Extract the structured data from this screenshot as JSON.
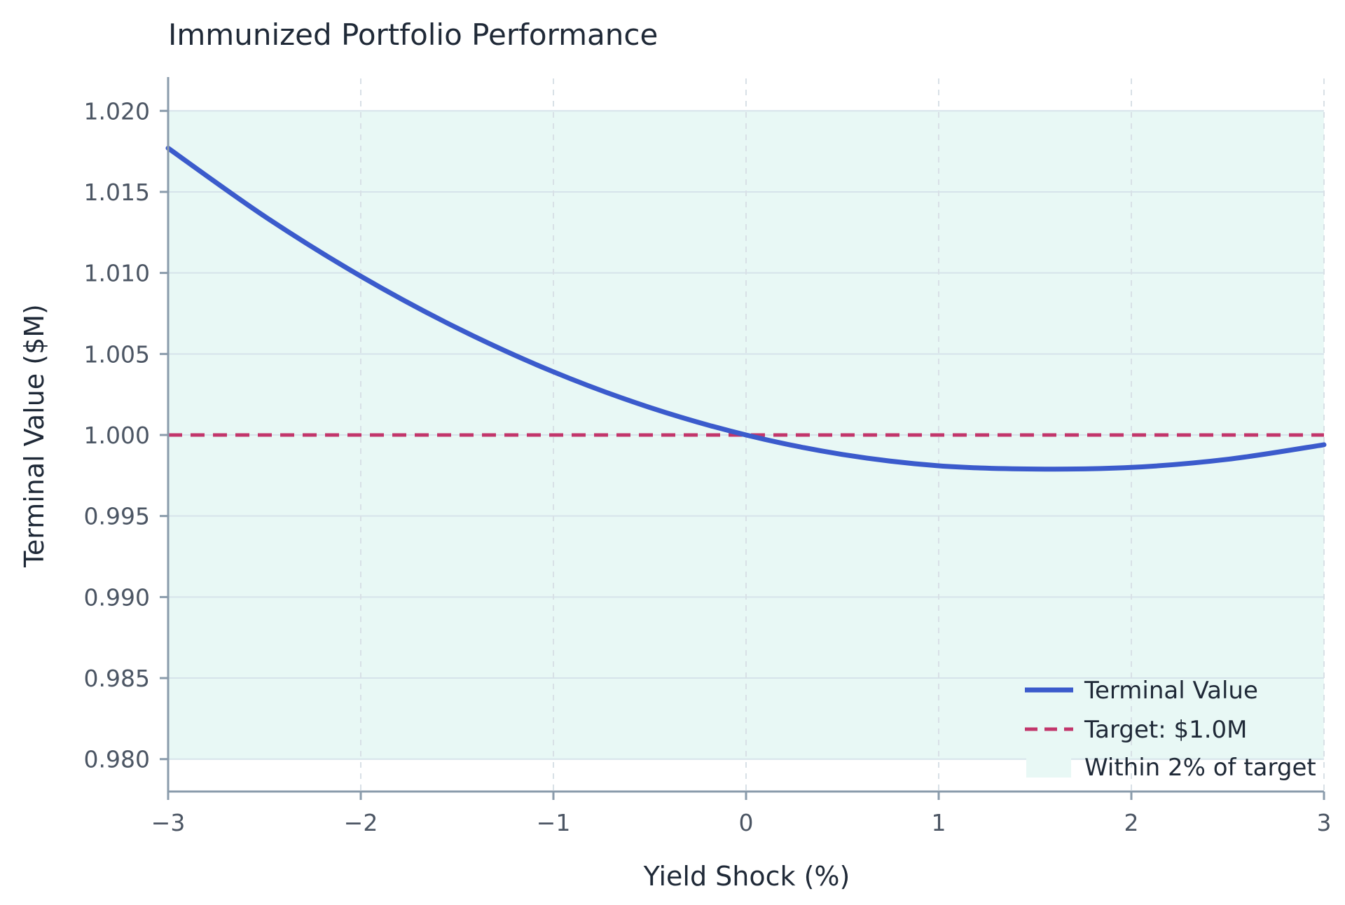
{
  "chart_data": {
    "type": "line",
    "title": "Immunized Portfolio Performance",
    "xlabel": "Yield Shock (%)",
    "ylabel": "Terminal Value ($M)",
    "xlim": [
      -3,
      3
    ],
    "ylim": [
      0.978,
      1.022
    ],
    "x_ticks": [
      -3,
      -2,
      -1,
      0,
      1,
      2,
      3
    ],
    "x_tick_labels": [
      "−3",
      "−2",
      "−1",
      "0",
      "1",
      "2",
      "3"
    ],
    "y_ticks": [
      0.98,
      0.985,
      0.99,
      0.995,
      1.0,
      1.005,
      1.01,
      1.015,
      1.02
    ],
    "y_tick_labels": [
      "0.980",
      "0.985",
      "0.990",
      "0.995",
      "1.000",
      "1.005",
      "1.010",
      "1.015",
      "1.020"
    ],
    "grid": true,
    "legend_position": "bottom-right",
    "series": [
      {
        "name": "Terminal Value",
        "color": "#3b5bcc",
        "style": "solid",
        "x": [
          -3.0,
          -2.5,
          -2.0,
          -1.5,
          -1.0,
          -0.5,
          0.0,
          0.5,
          1.0,
          1.5,
          2.0,
          2.5,
          3.0
        ],
        "y": [
          1.0177,
          1.0135,
          1.0098,
          1.0066,
          1.0039,
          1.0017,
          1.0,
          0.9988,
          0.9981,
          0.9979,
          0.998,
          0.9985,
          0.9994
        ]
      },
      {
        "name": "Target: $1.0M",
        "color": "#c2366b",
        "style": "dashed",
        "x": [
          -3.0,
          3.0
        ],
        "y": [
          1.0,
          1.0
        ]
      }
    ],
    "band": {
      "name": "Within 2% of target",
      "color": "#e8f8f5",
      "y_range": [
        0.98,
        1.02
      ]
    }
  }
}
